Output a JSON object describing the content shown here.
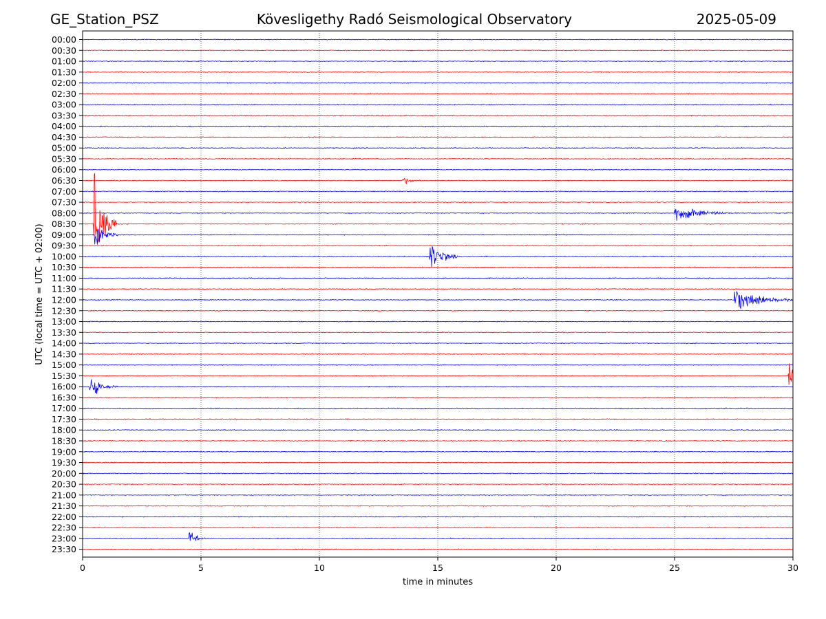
{
  "header": {
    "station": "GE_Station_PSZ",
    "observatory": "Kövesligethy Radó Seismological Observatory",
    "date": "2025-05-09"
  },
  "chart_data": {
    "type": "line",
    "title": "Kövesligethy Radó Seismological Observatory",
    "xlabel": "time in minutes",
    "ylabel": "UTC (local time = UTC + 02:00)",
    "xlim": [
      0,
      30
    ],
    "xticks": [
      0,
      5,
      10,
      15,
      20,
      25,
      30
    ],
    "grid": "vertical dotted at x ticks",
    "colors": {
      "even_row": "#0000ff",
      "odd_row": "#ff0000"
    },
    "rows": [
      "00:00",
      "00:30",
      "01:00",
      "01:30",
      "02:00",
      "02:30",
      "03:00",
      "03:30",
      "04:00",
      "04:30",
      "05:00",
      "05:30",
      "06:00",
      "06:30",
      "07:00",
      "07:30",
      "08:00",
      "08:30",
      "09:00",
      "09:30",
      "10:00",
      "10:30",
      "11:00",
      "11:30",
      "12:00",
      "12:30",
      "13:00",
      "13:30",
      "14:00",
      "14:30",
      "15:00",
      "15:30",
      "16:00",
      "16:30",
      "17:00",
      "17:30",
      "18:00",
      "18:30",
      "19:00",
      "19:30",
      "20:00",
      "20:30",
      "21:00",
      "21:30",
      "22:00",
      "22:30",
      "23:00",
      "23:30"
    ],
    "events": [
      {
        "row": "08:30",
        "x_min": 0.45,
        "amplitude": 1.0,
        "duration_min": 1.0
      },
      {
        "row": "08:00",
        "x_min": 25.0,
        "amplitude": 0.15,
        "duration_min": 2.5
      },
      {
        "row": "09:00",
        "x_min": 0.5,
        "amplitude": 0.3,
        "duration_min": 1.0
      },
      {
        "row": "10:00",
        "x_min": 14.65,
        "amplitude": 0.35,
        "duration_min": 1.2
      },
      {
        "row": "12:00",
        "x_min": 27.5,
        "amplitude": 0.2,
        "duration_min": 3.0
      },
      {
        "row": "15:30",
        "x_min": 29.8,
        "amplitude": 0.25,
        "duration_min": 1.0
      },
      {
        "row": "16:00",
        "x_min": 0.3,
        "amplitude": 0.2,
        "duration_min": 1.2
      },
      {
        "row": "23:00",
        "x_min": 4.5,
        "amplitude": 0.12,
        "duration_min": 1.0
      },
      {
        "row": "06:30",
        "x_min": 13.5,
        "amplitude": 0.08,
        "duration_min": 0.8
      }
    ]
  }
}
